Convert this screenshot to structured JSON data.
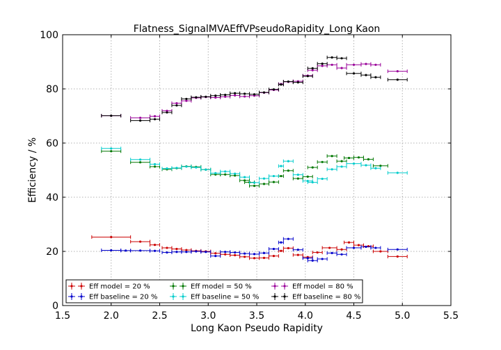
{
  "chart_data": {
    "type": "scatter",
    "title": "Flatness_SignalMVAEffVPseudoRapidity_Long Kaon",
    "xlabel": "Long Kaon Pseudo Rapidity",
    "ylabel": "Efficiency / %",
    "xlim": [
      1.5,
      5.5
    ],
    "ylim": [
      0,
      100
    ],
    "xticks": [
      "1.5",
      "2.0",
      "2.5",
      "3.0",
      "3.5",
      "4.0",
      "4.5",
      "5.0",
      "5.5"
    ],
    "yticks": [
      "0",
      "20",
      "40",
      "60",
      "80",
      "100"
    ],
    "grid": true,
    "legend_position": "bottom-left",
    "series": [
      {
        "name": "Eff model = 20 %",
        "color": "#cc0000",
        "points": [
          [
            2.0,
            25.3,
            0.2
          ],
          [
            2.3,
            23.6,
            0.1
          ],
          [
            2.45,
            22.4,
            0.05
          ],
          [
            2.575,
            21.3,
            0.05
          ],
          [
            2.675,
            20.9,
            0.05
          ],
          [
            2.775,
            20.5,
            0.05
          ],
          [
            2.875,
            20.2,
            0.05
          ],
          [
            2.975,
            20.0,
            0.05
          ],
          [
            3.075,
            19.3,
            0.05
          ],
          [
            3.175,
            18.9,
            0.05
          ],
          [
            3.275,
            18.6,
            0.05
          ],
          [
            3.375,
            18.0,
            0.05
          ],
          [
            3.475,
            17.5,
            0.05
          ],
          [
            3.575,
            17.6,
            0.05
          ],
          [
            3.675,
            18.3,
            0.05
          ],
          [
            3.75,
            20.2,
            0.025
          ],
          [
            3.825,
            21.2,
            0.05
          ],
          [
            3.925,
            18.7,
            0.05
          ],
          [
            4.025,
            17.9,
            0.05
          ],
          [
            4.125,
            19.6,
            0.05
          ],
          [
            4.25,
            21.3,
            0.075
          ],
          [
            4.375,
            20.7,
            0.05
          ],
          [
            4.45,
            23.3,
            0.05
          ],
          [
            4.55,
            22.3,
            0.05
          ],
          [
            4.65,
            21.9,
            0.05
          ],
          [
            4.775,
            20.0,
            0.075
          ],
          [
            4.95,
            18.1,
            0.1
          ]
        ]
      },
      {
        "name": "Eff baseline = 20 %",
        "color": "#0000cc",
        "points": [
          [
            2.0,
            20.4,
            0.1
          ],
          [
            2.15,
            20.3,
            0.05
          ],
          [
            2.3,
            20.3,
            0.1
          ],
          [
            2.45,
            20.2,
            0.05
          ],
          [
            2.575,
            19.6,
            0.05
          ],
          [
            2.675,
            19.8,
            0.05
          ],
          [
            2.775,
            19.8,
            0.05
          ],
          [
            2.875,
            20.0,
            0.05
          ],
          [
            2.975,
            19.8,
            0.05
          ],
          [
            3.075,
            18.3,
            0.05
          ],
          [
            3.175,
            19.8,
            0.05
          ],
          [
            3.275,
            19.6,
            0.05
          ],
          [
            3.375,
            19.2,
            0.05
          ],
          [
            3.475,
            19.0,
            0.05
          ],
          [
            3.575,
            19.4,
            0.05
          ],
          [
            3.675,
            20.9,
            0.05
          ],
          [
            3.75,
            23.3,
            0.025
          ],
          [
            3.825,
            24.6,
            0.05
          ],
          [
            3.925,
            20.6,
            0.05
          ],
          [
            4.025,
            17.5,
            0.05
          ],
          [
            4.075,
            16.6,
            0.05
          ],
          [
            4.175,
            17.2,
            0.05
          ],
          [
            4.275,
            19.4,
            0.05
          ],
          [
            4.375,
            18.9,
            0.05
          ],
          [
            4.5,
            21.3,
            0.075
          ],
          [
            4.625,
            21.7,
            0.05
          ],
          [
            4.725,
            21.3,
            0.05
          ],
          [
            4.95,
            20.7,
            0.1
          ]
        ]
      },
      {
        "name": "Eff model = 50 %",
        "color": "#007700",
        "points": [
          [
            2.0,
            57.0,
            0.1
          ],
          [
            2.3,
            52.9,
            0.1
          ],
          [
            2.45,
            51.3,
            0.05
          ],
          [
            2.575,
            50.3,
            0.05
          ],
          [
            2.675,
            50.7,
            0.05
          ],
          [
            2.775,
            51.4,
            0.05
          ],
          [
            2.875,
            51.2,
            0.05
          ],
          [
            2.975,
            50.2,
            0.05
          ],
          [
            3.075,
            48.4,
            0.05
          ],
          [
            3.175,
            48.4,
            0.05
          ],
          [
            3.275,
            48.0,
            0.05
          ],
          [
            3.375,
            46.2,
            0.05
          ],
          [
            3.425,
            45.5,
            0.05
          ],
          [
            3.475,
            44.2,
            0.05
          ],
          [
            3.575,
            44.9,
            0.05
          ],
          [
            3.675,
            45.6,
            0.05
          ],
          [
            3.75,
            47.8,
            0.025
          ],
          [
            3.825,
            49.8,
            0.05
          ],
          [
            3.925,
            46.9,
            0.05
          ],
          [
            4.025,
            47.6,
            0.05
          ],
          [
            4.075,
            51.0,
            0.05
          ],
          [
            4.175,
            53.0,
            0.05
          ],
          [
            4.275,
            55.2,
            0.05
          ],
          [
            4.375,
            53.3,
            0.05
          ],
          [
            4.45,
            54.5,
            0.05
          ],
          [
            4.55,
            54.7,
            0.05
          ],
          [
            4.65,
            54.0,
            0.05
          ],
          [
            4.775,
            51.6,
            0.075
          ]
        ]
      },
      {
        "name": "Eff baseline = 50 %",
        "color": "#00cccc",
        "points": [
          [
            2.0,
            58.0,
            0.1
          ],
          [
            2.3,
            53.9,
            0.1
          ],
          [
            2.45,
            52.2,
            0.05
          ],
          [
            2.575,
            50.6,
            0.05
          ],
          [
            2.675,
            50.8,
            0.05
          ],
          [
            2.775,
            51.3,
            0.05
          ],
          [
            2.875,
            51.0,
            0.05
          ],
          [
            2.975,
            50.2,
            0.05
          ],
          [
            3.075,
            48.9,
            0.05
          ],
          [
            3.175,
            49.5,
            0.05
          ],
          [
            3.275,
            48.7,
            0.05
          ],
          [
            3.375,
            47.4,
            0.05
          ],
          [
            3.475,
            45.4,
            0.05
          ],
          [
            3.575,
            46.9,
            0.05
          ],
          [
            3.675,
            47.8,
            0.05
          ],
          [
            3.75,
            51.5,
            0.025
          ],
          [
            3.825,
            53.3,
            0.05
          ],
          [
            3.925,
            48.3,
            0.05
          ],
          [
            4.025,
            46.0,
            0.05
          ],
          [
            4.075,
            45.5,
            0.05
          ],
          [
            4.175,
            46.8,
            0.05
          ],
          [
            4.275,
            50.3,
            0.05
          ],
          [
            4.375,
            51.3,
            0.05
          ],
          [
            4.5,
            52.4,
            0.075
          ],
          [
            4.625,
            51.8,
            0.05
          ],
          [
            4.725,
            50.7,
            0.05
          ],
          [
            4.95,
            49.0,
            0.1
          ]
        ]
      },
      {
        "name": "Eff model = 80 %",
        "color": "#990099",
        "points": [
          [
            2.0,
            70.1,
            0.1
          ],
          [
            2.3,
            69.3,
            0.1
          ],
          [
            2.45,
            69.9,
            0.05
          ],
          [
            2.575,
            71.9,
            0.05
          ],
          [
            2.675,
            74.7,
            0.05
          ],
          [
            2.775,
            75.6,
            0.05
          ],
          [
            2.875,
            76.7,
            0.05
          ],
          [
            2.975,
            77.0,
            0.05
          ],
          [
            3.075,
            76.8,
            0.05
          ],
          [
            3.175,
            77.1,
            0.05
          ],
          [
            3.275,
            77.6,
            0.05
          ],
          [
            3.375,
            77.2,
            0.05
          ],
          [
            3.475,
            77.5,
            0.05
          ],
          [
            3.575,
            78.6,
            0.05
          ],
          [
            3.675,
            79.6,
            0.05
          ],
          [
            3.75,
            81.8,
            0.025
          ],
          [
            3.825,
            82.6,
            0.05
          ],
          [
            3.925,
            82.8,
            0.05
          ],
          [
            4.025,
            84.9,
            0.05
          ],
          [
            4.075,
            86.9,
            0.05
          ],
          [
            4.175,
            88.5,
            0.05
          ],
          [
            4.275,
            88.9,
            0.05
          ],
          [
            4.375,
            87.7,
            0.05
          ],
          [
            4.5,
            88.9,
            0.075
          ],
          [
            4.625,
            89.2,
            0.05
          ],
          [
            4.725,
            88.9,
            0.05
          ],
          [
            4.95,
            86.5,
            0.1
          ]
        ]
      },
      {
        "name": "Eff baseline = 80 %",
        "color": "#000000",
        "points": [
          [
            2.0,
            70.1,
            0.1
          ],
          [
            2.3,
            68.3,
            0.1
          ],
          [
            2.45,
            68.8,
            0.05
          ],
          [
            2.575,
            71.3,
            0.05
          ],
          [
            2.675,
            73.9,
            0.05
          ],
          [
            2.775,
            76.3,
            0.05
          ],
          [
            2.875,
            76.9,
            0.05
          ],
          [
            2.975,
            77.1,
            0.05
          ],
          [
            3.075,
            77.5,
            0.05
          ],
          [
            3.175,
            77.8,
            0.05
          ],
          [
            3.275,
            78.4,
            0.05
          ],
          [
            3.375,
            78.2,
            0.05
          ],
          [
            3.475,
            78.0,
            0.05
          ],
          [
            3.575,
            78.7,
            0.05
          ],
          [
            3.675,
            79.8,
            0.05
          ],
          [
            3.75,
            81.6,
            0.025
          ],
          [
            3.825,
            82.7,
            0.05
          ],
          [
            3.925,
            82.4,
            0.05
          ],
          [
            4.025,
            84.7,
            0.05
          ],
          [
            4.075,
            87.6,
            0.05
          ],
          [
            4.175,
            89.3,
            0.05
          ],
          [
            4.275,
            91.6,
            0.05
          ],
          [
            4.375,
            91.3,
            0.05
          ],
          [
            4.5,
            85.7,
            0.075
          ],
          [
            4.625,
            85.1,
            0.05
          ],
          [
            4.725,
            84.3,
            0.05
          ],
          [
            4.95,
            83.4,
            0.1
          ]
        ]
      }
    ]
  }
}
